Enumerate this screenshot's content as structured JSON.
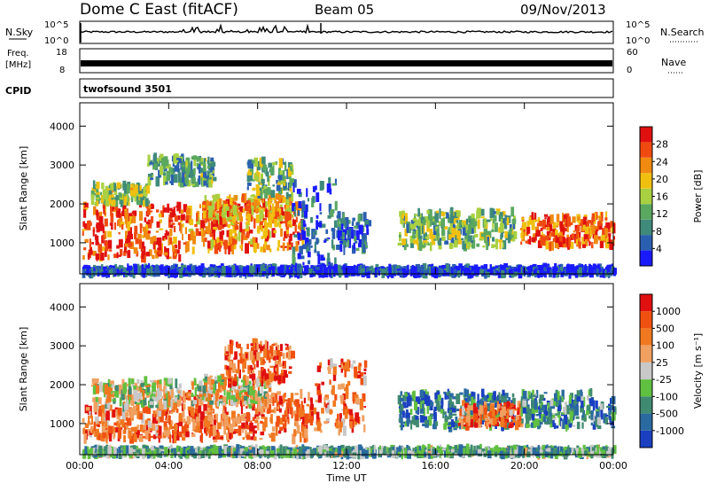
{
  "header": {
    "station": "Dome C East (fitACF)",
    "beam": "Beam 05",
    "date": "09/Nov/2013"
  },
  "strips": {
    "nsky_label": "N.Sky",
    "nsky_ticks": [
      "10^5",
      "10^0"
    ],
    "nsearch_label": "N.Search",
    "freq_label_1": "Freq.",
    "freq_label_2": "[MHz]",
    "freq_ticks": [
      "18",
      "8"
    ],
    "nave_ticks": [
      "60",
      "0"
    ],
    "nave_label": "Nave",
    "cpid_label": "CPID",
    "cpid_value": "twofsound 3501"
  },
  "chart_data": [
    {
      "type": "heatmap",
      "name": "power",
      "ylabel": "Slant Range [km]",
      "xlabel": "",
      "x_ticks": [
        "00:00",
        "04:00",
        "08:00",
        "12:00",
        "16:00",
        "20:00",
        "00:00"
      ],
      "y_ticks": [
        "1000",
        "2000",
        "3000",
        "4000"
      ],
      "x_range_hours": [
        0,
        24
      ],
      "ylim": [
        200,
        4600
      ],
      "colorbar": {
        "label": "Power [dB]",
        "ticks": [
          "4",
          "8",
          "12",
          "16",
          "20",
          "24",
          "28"
        ],
        "colors": [
          "#1a1aff",
          "#2a5fb0",
          "#3f8a7a",
          "#5aa860",
          "#a8d040",
          "#f0c010",
          "#f08a10",
          "#f04a10",
          "#e01010"
        ]
      },
      "regions": [
        {
          "t0": 0.1,
          "t1": 4.5,
          "r0": 600,
          "r1": 2000,
          "level": 0.85
        },
        {
          "t0": 0.5,
          "t1": 3.0,
          "r0": 2000,
          "r1": 2500,
          "level": 0.45
        },
        {
          "t0": 3.0,
          "t1": 6.0,
          "r0": 2500,
          "r1": 3200,
          "level": 0.35
        },
        {
          "t0": 4.5,
          "t1": 10.0,
          "r0": 800,
          "r1": 2000,
          "level": 0.75
        },
        {
          "t0": 5.5,
          "t1": 9.5,
          "r0": 1500,
          "r1": 2200,
          "level": 0.7
        },
        {
          "t0": 7.5,
          "t1": 9.5,
          "r0": 2200,
          "r1": 3100,
          "level": 0.4
        },
        {
          "t0": 9.5,
          "t1": 11.5,
          "r0": 300,
          "r1": 2600,
          "level": 0.15
        },
        {
          "t0": 11.5,
          "t1": 13.0,
          "r0": 800,
          "r1": 1700,
          "level": 0.2
        },
        {
          "t0": 14.3,
          "t1": 19.5,
          "r0": 900,
          "r1": 1800,
          "level": 0.4
        },
        {
          "t0": 19.8,
          "t1": 24.0,
          "r0": 900,
          "r1": 1700,
          "level": 0.8
        },
        {
          "t0": 0.1,
          "t1": 24.0,
          "r0": 200,
          "r1": 350,
          "level": 0.1
        }
      ]
    },
    {
      "type": "heatmap",
      "name": "velocity",
      "ylabel": "Slant Range [km]",
      "xlabel": "Time UT",
      "x_ticks": [
        "00:00",
        "04:00",
        "08:00",
        "12:00",
        "16:00",
        "20:00",
        "00:00"
      ],
      "y_ticks": [
        "1000",
        "2000",
        "3000",
        "4000"
      ],
      "x_range_hours": [
        0,
        24
      ],
      "ylim": [
        200,
        4600
      ],
      "colorbar": {
        "label": "Velocity [m s⁻¹]",
        "ticks": [
          "1000",
          "500",
          "100",
          "25",
          "-25",
          "-100",
          "-500",
          "-1000"
        ],
        "colors": [
          "#1a3fc0",
          "#2a6aa0",
          "#3f8a70",
          "#60c040",
          "#c8c8c8",
          "#f0a060",
          "#f07820",
          "#f05010",
          "#e01010"
        ]
      },
      "regions": [
        {
          "t0": 0.1,
          "t1": 4.5,
          "r0": 600,
          "r1": 1400,
          "level": 0.75
        },
        {
          "t0": 0.5,
          "t1": 4.5,
          "r0": 1400,
          "r1": 2100,
          "level": 0.5
        },
        {
          "t0": 4.5,
          "t1": 10.5,
          "r0": 600,
          "r1": 1800,
          "level": 0.78
        },
        {
          "t0": 5.0,
          "t1": 8.5,
          "r0": 1500,
          "r1": 2200,
          "level": 0.52
        },
        {
          "t0": 6.5,
          "t1": 9.5,
          "r0": 2000,
          "r1": 3100,
          "level": 0.8
        },
        {
          "t0": 10.5,
          "t1": 12.8,
          "r0": 800,
          "r1": 2600,
          "level": 0.75
        },
        {
          "t0": 14.3,
          "t1": 19.5,
          "r0": 900,
          "r1": 1800,
          "level": 0.2
        },
        {
          "t0": 17.0,
          "t1": 19.8,
          "r0": 900,
          "r1": 1500,
          "level": 0.75
        },
        {
          "t0": 19.8,
          "t1": 24.0,
          "r0": 900,
          "r1": 1800,
          "level": 0.25
        },
        {
          "t0": 0.1,
          "t1": 24.0,
          "r0": 200,
          "r1": 350,
          "level": 0.35
        }
      ]
    }
  ]
}
